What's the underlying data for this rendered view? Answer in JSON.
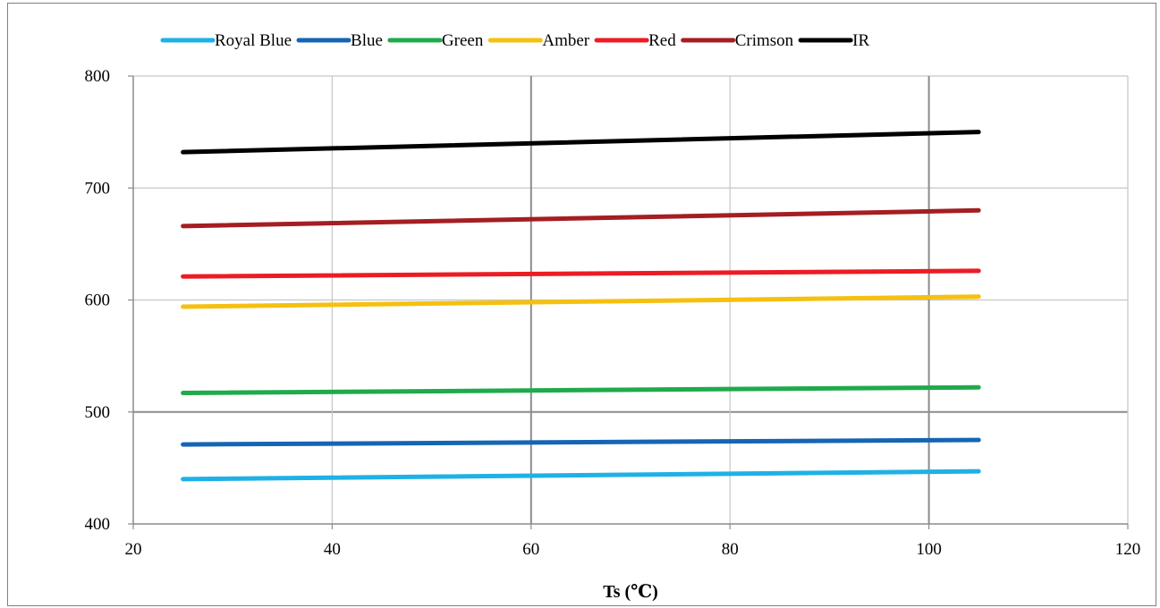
{
  "chart_data": {
    "type": "line",
    "title": "",
    "xlabel": "Ts (℃)",
    "ylabel": "",
    "xlim": [
      20,
      120
    ],
    "ylim": [
      400,
      800
    ],
    "xticks": [
      20,
      40,
      60,
      80,
      100,
      120
    ],
    "yticks": [
      400,
      500,
      600,
      700,
      800
    ],
    "grid": true,
    "legend_position": "top",
    "x": [
      25,
      105
    ],
    "series": [
      {
        "name": "Royal Blue",
        "color": "#1fb1e6",
        "values": [
          440,
          447
        ]
      },
      {
        "name": "Blue",
        "color": "#1565b4",
        "values": [
          471,
          475
        ]
      },
      {
        "name": "Green",
        "color": "#1faa4b",
        "values": [
          517,
          522
        ]
      },
      {
        "name": "Amber",
        "color": "#f5c010",
        "values": [
          594,
          603
        ]
      },
      {
        "name": "Red",
        "color": "#ec1c24",
        "values": [
          621,
          626
        ]
      },
      {
        "name": "Crimson",
        "color": "#a41e22",
        "values": [
          666,
          680
        ]
      },
      {
        "name": "IR",
        "color": "#000000",
        "values": [
          732,
          750
        ]
      }
    ]
  }
}
